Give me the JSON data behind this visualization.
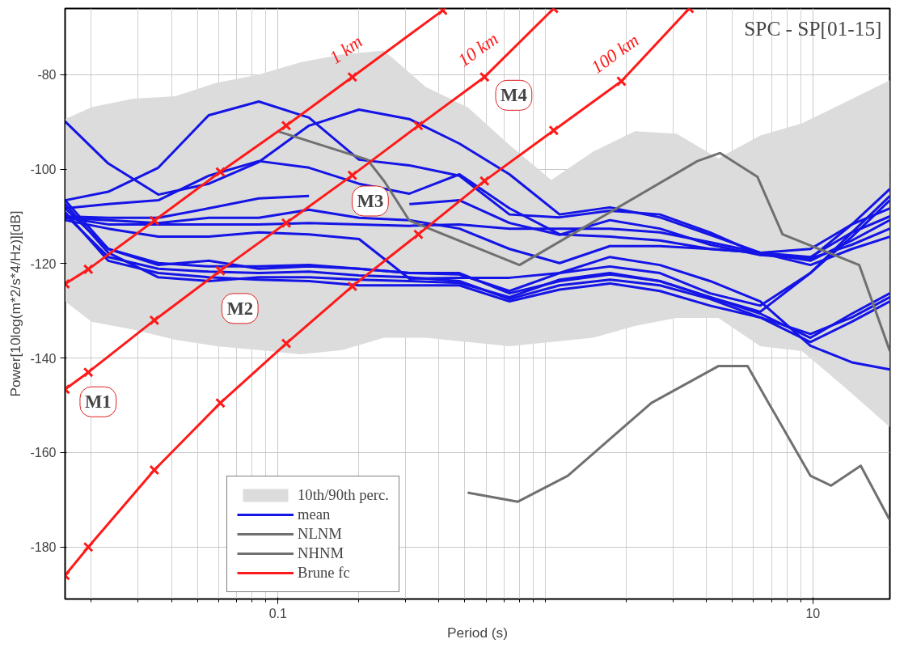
{
  "chart_data": {
    "type": "line",
    "title": "SPC - SP[01-15]",
    "xlabel": "Period (s)",
    "ylabel": "Power[10log(m*2/s*4/Hz)][dB]",
    "log": "x",
    "grid": true,
    "legend": "bottom left",
    "marker": "none",
    "line_style": "solid",
    "xlim": [
      0.016,
      19.4
    ],
    "ylim": [
      -191,
      -66
    ],
    "xticks": [
      0.1,
      10
    ],
    "yticks": [
      -80,
      -100,
      -120,
      -140,
      -160,
      -180
    ],
    "x": [
      0.016,
      0.0232,
      0.0357,
      0.0551,
      0.0848,
      0.1306,
      0.201,
      0.31,
      0.477,
      0.734,
      1.13,
      1.741,
      2.68,
      4.13,
      6.36,
      9.79,
      14.0,
      19.4
    ],
    "series": [
      {
        "name": "10th/90th perc.",
        "color": "#dcdcdc",
        "x": [
          0.016,
          0.0201,
          0.0288,
          0.0413,
          0.0591,
          0.0848,
          0.1214,
          0.174,
          0.249,
          0.357,
          0.512,
          0.734,
          1.052,
          1.507,
          2.16,
          3.09,
          4.43,
          6.36,
          9.1,
          13.05,
          19.4
        ],
        "values": [
          null,
          null,
          null,
          null,
          null,
          null,
          null,
          null,
          null,
          null,
          null,
          null,
          null,
          null,
          null,
          null,
          null,
          null,
          null,
          null,
          null
        ],
        "upper": [
          -89.4,
          -86.9,
          -85.1,
          -84.6,
          -81.7,
          -80.0,
          -77.4,
          -75.7,
          -74.9,
          -82.6,
          -86.9,
          -94.9,
          -102.3,
          -96.3,
          -92.0,
          -92.5,
          -97.7,
          -92.9,
          -90.3,
          -86.0,
          -81.2
        ],
        "lower": [
          -128.0,
          -132.3,
          -134.0,
          -136.1,
          -137.5,
          -138.3,
          -139.2,
          -138.3,
          -135.7,
          -135.7,
          -136.6,
          -137.5,
          -136.6,
          -135.7,
          -133.2,
          -131.5,
          -131.5,
          -137.5,
          -138.5,
          -146.0,
          -154.6
        ]
      },
      {
        "name": "mean",
        "color": "#1414e6",
        "values": [
          -106.6,
          -104.8,
          -99.7,
          -88.6,
          -85.7,
          -89.1,
          -98.0,
          -99.2,
          -101.4,
          -109.6,
          -110.2,
          -108.8,
          -109.6,
          -113.4,
          -118.1,
          -118.9,
          -111.7,
          -104.2
        ]
      },
      {
        "color": "#1414e6",
        "values": [
          -89.9,
          -98.8,
          -105.4,
          -103.1,
          -98.5,
          -90.8,
          -87.4,
          -89.4,
          -94.6,
          -101.1,
          -109.6,
          -108.1,
          -110.2,
          -113.9,
          -117.7,
          -119.4,
          -115.1,
          -110.8
        ]
      },
      {
        "color": "#1414e6",
        "values": [
          -108.3,
          -107.4,
          -106.6,
          -101.4,
          -98.3,
          -99.7,
          -103.1,
          -105.2,
          -101.1,
          -108.3,
          -113.8,
          -114.3,
          -115.1,
          -116.9,
          -117.7,
          -116.9,
          -111.7,
          -108.3
        ]
      },
      {
        "color": "#1414e6",
        "values": [
          -110.0,
          -110.3,
          -110.3,
          -108.3,
          -106.2,
          -105.7,
          null,
          -107.4,
          -106.6,
          -111.4,
          -113.9,
          -110.8,
          -112.6,
          -116.0,
          -118.2,
          -118.9,
          -116.0,
          -112.6
        ]
      },
      {
        "color": "#1414e6",
        "values": [
          -110.3,
          -110.8,
          -111.4,
          -110.3,
          -110.3,
          -108.6,
          -110.3,
          -110.8,
          -112.6,
          -116.9,
          -119.9,
          -116.3,
          -116.3,
          -116.9,
          -117.7,
          -118.6,
          -113.4,
          -110.0
        ]
      },
      {
        "color": "#1414e6",
        "values": [
          -110.8,
          -112.6,
          -114.3,
          -114.3,
          -113.4,
          -113.8,
          -114.8,
          -123.2,
          -123.0,
          -123.0,
          -122.0,
          -118.6,
          -120.3,
          -123.7,
          -128.0,
          -137.4,
          -140.9,
          -142.4
        ]
      },
      {
        "color": "#1414e6",
        "values": [
          -108.3,
          -116.9,
          -119.9,
          -120.6,
          -120.6,
          -120.3,
          -121.1,
          -122.0,
          -122.0,
          -126.3,
          -123.7,
          -122.3,
          -123.7,
          -127.1,
          -130.6,
          -135.7,
          -130.6,
          -126.3
        ]
      },
      {
        "color": "#1414e6",
        "values": [
          -109.6,
          -118.6,
          -121.1,
          -121.7,
          -122.0,
          -121.7,
          -122.5,
          -122.9,
          -123.7,
          -127.5,
          -124.6,
          -123.4,
          -124.6,
          -127.5,
          -131.4,
          -136.6,
          -132.3,
          -128.0
        ]
      },
      {
        "color": "#1414e6",
        "values": [
          -109.1,
          -119.4,
          -122.0,
          -122.9,
          -123.4,
          -123.7,
          -124.6,
          -124.6,
          -124.6,
          -128.0,
          -125.5,
          -124.2,
          -125.8,
          -128.9,
          -131.4,
          -134.9,
          -131.4,
          -127.1
        ]
      },
      {
        "color": "#1414e6",
        "values": [
          -106.6,
          -116.9,
          -120.3,
          -119.4,
          -121.1,
          -120.6,
          -121.1,
          -122.0,
          -122.3,
          -125.8,
          -122.0,
          -120.6,
          -122.0,
          -126.3,
          -128.9,
          -122.0,
          -113.4,
          -105.7
        ]
      },
      {
        "color": "#1414e6",
        "values": [
          -107.4,
          -117.7,
          -122.9,
          -123.7,
          -122.9,
          -122.9,
          -123.4,
          -123.7,
          -124.1,
          -127.1,
          -123.4,
          -122.0,
          -123.7,
          -127.1,
          -130.2,
          -122.0,
          -114.3,
          -106.6
        ]
      },
      {
        "color": "#1414e6",
        "values": [
          -110.3,
          -111.7,
          -111.7,
          -111.7,
          -111.7,
          -111.4,
          -111.7,
          -112.0,
          -111.7,
          -112.6,
          -112.6,
          -112.6,
          -113.4,
          -115.5,
          -117.7,
          -120.3,
          -116.9,
          -114.3
        ]
      },
      {
        "name": "NLNM",
        "color": "#707070",
        "x": [
          0.512,
          0.789,
          1.213,
          2.49,
          4.43,
          5.7,
          6.83,
          9.79,
          11.7,
          15.1,
          19.4
        ],
        "values": [
          -168.5,
          -170.4,
          -164.9,
          -149.5,
          -141.7,
          -141.7,
          -149.5,
          -164.9,
          -167.0,
          -162.8,
          -174.3
        ]
      },
      {
        "name": "NHNM",
        "color": "#707070",
        "x": [
          0.1,
          0.216,
          0.25,
          0.31,
          0.8,
          3.7,
          4.5,
          6.2,
          7.7,
          14.9,
          19.4
        ],
        "values": [
          -92.0,
          -98.0,
          -102.6,
          -110.9,
          -120.3,
          -98.3,
          -96.6,
          -101.6,
          -113.8,
          -120.3,
          -138.5
        ]
      },
      {
        "name": "Brune fc",
        "color": "#ff1a1a",
        "marker": "cross",
        "x": [
          0.016,
          0.01954,
          0.0345,
          0.0609,
          0.1074,
          0.1897,
          0.413
        ],
        "values": [
          -124.3,
          -121.2,
          -110.9,
          -100.6,
          -90.8,
          -80.5,
          -66.4
        ]
      },
      {
        "color": "#ff1a1a",
        "marker": "cross",
        "x": [
          0.016,
          0.01954,
          0.0345,
          0.0609,
          0.1074,
          0.1897,
          0.335,
          0.592,
          1.074
        ],
        "values": [
          -146.6,
          -143.0,
          -132.0,
          -121.5,
          -111.4,
          -101.3,
          -90.8,
          -80.5,
          -66.0
        ]
      },
      {
        "color": "#ff1a1a",
        "marker": "cross",
        "x": [
          0.016,
          0.01954,
          0.0345,
          0.0609,
          0.1074,
          0.1897,
          0.335,
          0.592,
          1.074,
          1.923,
          3.45
        ],
        "values": [
          -186.0,
          -180.0,
          -163.7,
          -149.5,
          -136.9,
          -124.8,
          -113.8,
          -102.5,
          -91.8,
          -81.4,
          -66.0
        ]
      }
    ],
    "annotations": [
      "M1",
      "M2",
      "M3",
      "M4",
      {
        "text": "1 km",
        "x": 0.1897,
        "y": -80.5
      },
      {
        "text": "10 km",
        "x": 0.592,
        "y": -80.5
      },
      {
        "text": "100 km",
        "x": 1.923,
        "y": -81.4
      }
    ]
  }
}
